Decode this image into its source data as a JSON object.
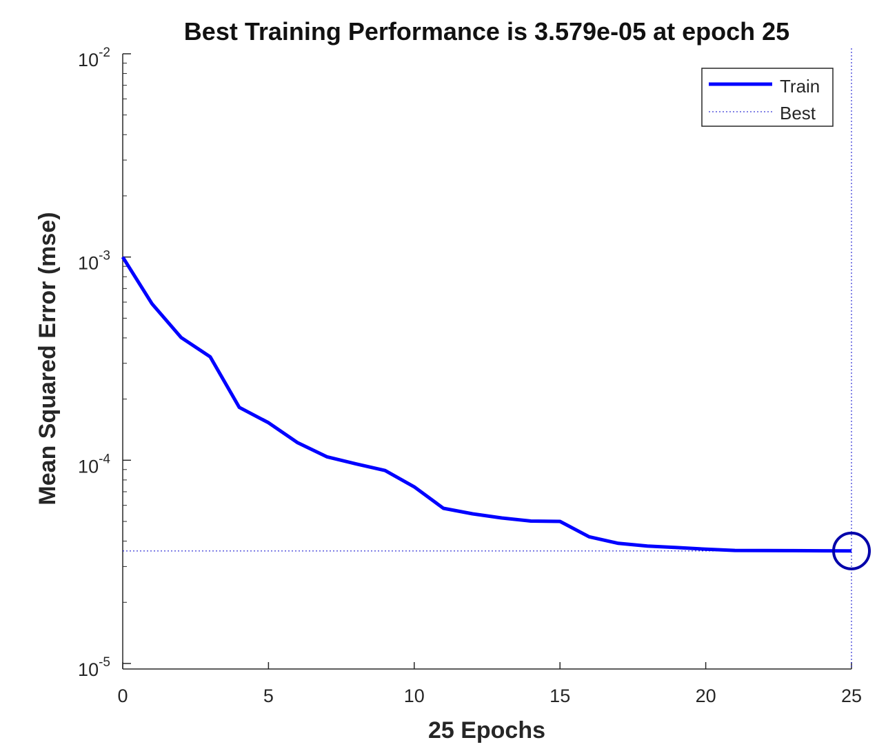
{
  "chart_data": {
    "type": "line",
    "title": "Best Training Performance is 3.579e-05 at epoch 25",
    "xlabel": "25 Epochs",
    "ylabel": "Mean Squared Error  (mse)",
    "xlim": [
      0,
      25
    ],
    "ylim": [
      1e-05,
      0.01
    ],
    "yscale": "log",
    "x_ticks": [
      0,
      5,
      10,
      15,
      20,
      25
    ],
    "x_tick_labels": [
      "0",
      "5",
      "10",
      "15",
      "20",
      "25"
    ],
    "y_ticks": [
      {
        "base": "10",
        "exp": "-5",
        "value": 1e-05
      },
      {
        "base": "10",
        "exp": "-4",
        "value": 0.0001
      },
      {
        "base": "10",
        "exp": "-3",
        "value": 0.001
      },
      {
        "base": "10",
        "exp": "-2",
        "value": 0.01
      }
    ],
    "series": [
      {
        "name": "Train",
        "color": "#0000ff",
        "style": "solid",
        "x": [
          0,
          1,
          2,
          3,
          4,
          5,
          6,
          7,
          8,
          9,
          10,
          11,
          12,
          13,
          14,
          15,
          16,
          17,
          18,
          19,
          20,
          21,
          22,
          23,
          24,
          25
        ],
        "values": [
          0.001,
          0.00059,
          0.000402,
          0.000323,
          0.000182,
          0.000153,
          0.000122,
          0.000104,
          9.6e-05,
          8.9e-05,
          7.4e-05,
          5.8e-05,
          5.45e-05,
          5.2e-05,
          5.02e-05,
          5e-05,
          4.2e-05,
          3.9e-05,
          3.78e-05,
          3.72e-05,
          3.65e-05,
          3.6e-05,
          3.595e-05,
          3.59e-05,
          3.585e-05,
          3.579e-05
        ]
      },
      {
        "name": "Best",
        "color": "#0000cc",
        "style": "dotted",
        "best_epoch": 25,
        "best_value": 3.579e-05
      }
    ],
    "legend": {
      "position": "top-right",
      "entries": [
        "Train",
        "Best"
      ]
    },
    "grid": false
  }
}
